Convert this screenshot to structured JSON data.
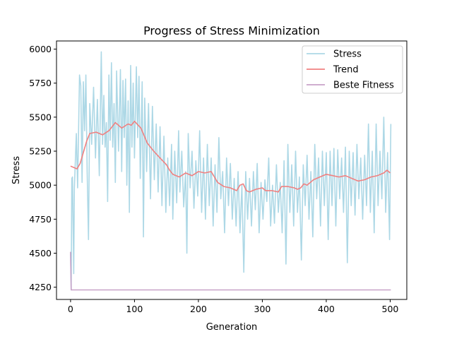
{
  "chart_data": {
    "type": "line",
    "title": "Progress of Stress Minimization",
    "xlabel": "Generation",
    "ylabel": "Stress",
    "xlim": [
      -22,
      526
    ],
    "ylim": [
      4160,
      6060
    ],
    "xticks": [
      0,
      100,
      200,
      300,
      400,
      500
    ],
    "yticks": [
      4250,
      4500,
      4750,
      5000,
      5250,
      5500,
      5750,
      6000
    ],
    "grid": false,
    "legend_position": "top-right",
    "series": [
      {
        "name": "Stress",
        "color": "#add8e6",
        "style": "noisy",
        "points": [
          [
            0,
            4510
          ],
          [
            1,
            4230
          ],
          [
            2,
            5050
          ],
          [
            3,
            5060
          ],
          [
            5,
            4350
          ],
          [
            6,
            4980
          ],
          [
            9,
            5380
          ],
          [
            11,
            4980
          ],
          [
            14,
            5810
          ],
          [
            16,
            5730
          ],
          [
            18,
            5020
          ],
          [
            20,
            5760
          ],
          [
            22,
            5400
          ],
          [
            24,
            5810
          ],
          [
            26,
            5100
          ],
          [
            28,
            4600
          ],
          [
            30,
            5600
          ],
          [
            33,
            5300
          ],
          [
            36,
            5720
          ],
          [
            39,
            5200
          ],
          [
            42,
            5630
          ],
          [
            45,
            5070
          ],
          [
            48,
            5980
          ],
          [
            50,
            5300
          ],
          [
            52,
            5660
          ],
          [
            54,
            5280
          ],
          [
            56,
            5460
          ],
          [
            58,
            4880
          ],
          [
            60,
            5810
          ],
          [
            62,
            5330
          ],
          [
            64,
            5900
          ],
          [
            66,
            5280
          ],
          [
            68,
            5600
          ],
          [
            70,
            5020
          ],
          [
            72,
            5840
          ],
          [
            75,
            5250
          ],
          [
            78,
            5850
          ],
          [
            80,
            5100
          ],
          [
            82,
            5770
          ],
          [
            84,
            5350
          ],
          [
            86,
            5780
          ],
          [
            88,
            5000
          ],
          [
            90,
            5620
          ],
          [
            92,
            4800
          ],
          [
            94,
            5880
          ],
          [
            96,
            5280
          ],
          [
            98,
            5750
          ],
          [
            100,
            5200
          ],
          [
            103,
            5870
          ],
          [
            105,
            5350
          ],
          [
            107,
            5800
          ],
          [
            109,
            5050
          ],
          [
            112,
            5760
          ],
          [
            114,
            4620
          ],
          [
            116,
            5640
          ],
          [
            119,
            5100
          ],
          [
            122,
            5600
          ],
          [
            125,
            4900
          ],
          [
            128,
            5580
          ],
          [
            131,
            5040
          ],
          [
            134,
            5450
          ],
          [
            137,
            4950
          ],
          [
            140,
            5430
          ],
          [
            143,
            4850
          ],
          [
            146,
            5360
          ],
          [
            149,
            4800
          ],
          [
            152,
            5200
          ],
          [
            155,
            4850
          ],
          [
            158,
            5300
          ],
          [
            160,
            4750
          ],
          [
            163,
            5250
          ],
          [
            166,
            4870
          ],
          [
            169,
            5400
          ],
          [
            171,
            4950
          ],
          [
            174,
            5250
          ],
          [
            177,
            4840
          ],
          [
            180,
            5100
          ],
          [
            182,
            4500
          ],
          [
            184,
            5380
          ],
          [
            187,
            4980
          ],
          [
            190,
            5250
          ],
          [
            193,
            4830
          ],
          [
            196,
            5180
          ],
          [
            199,
            4920
          ],
          [
            202,
            5400
          ],
          [
            205,
            4800
          ],
          [
            208,
            5200
          ],
          [
            211,
            4750
          ],
          [
            214,
            5300
          ],
          [
            217,
            4850
          ],
          [
            220,
            5200
          ],
          [
            223,
            4700
          ],
          [
            226,
            5150
          ],
          [
            229,
            4800
          ],
          [
            232,
            5350
          ],
          [
            235,
            4900
          ],
          [
            238,
            5100
          ],
          [
            241,
            4650
          ],
          [
            244,
            5200
          ],
          [
            247,
            4850
          ],
          [
            250,
            5160
          ],
          [
            253,
            4750
          ],
          [
            256,
            5050
          ],
          [
            259,
            4700
          ],
          [
            262,
            5100
          ],
          [
            265,
            4650
          ],
          [
            268,
            5000
          ],
          [
            271,
            4360
          ],
          [
            274,
            5100
          ],
          [
            277,
            4750
          ],
          [
            280,
            5050
          ],
          [
            283,
            4700
          ],
          [
            286,
            5100
          ],
          [
            289,
            4820
          ],
          [
            292,
            5160
          ],
          [
            295,
            4650
          ],
          [
            298,
            5020
          ],
          [
            301,
            4750
          ],
          [
            304,
            5040
          ],
          [
            307,
            4880
          ],
          [
            310,
            5200
          ],
          [
            313,
            4700
          ],
          [
            316,
            5000
          ],
          [
            319,
            4720
          ],
          [
            322,
            5150
          ],
          [
            325,
            4800
          ],
          [
            328,
            5020
          ],
          [
            331,
            4650
          ],
          [
            334,
            5180
          ],
          [
            337,
            4420
          ],
          [
            340,
            5300
          ],
          [
            343,
            4800
          ],
          [
            346,
            5150
          ],
          [
            349,
            4700
          ],
          [
            352,
            5250
          ],
          [
            355,
            4800
          ],
          [
            358,
            5060
          ],
          [
            361,
            4450
          ],
          [
            364,
            5150
          ],
          [
            367,
            4850
          ],
          [
            370,
            5220
          ],
          [
            373,
            4750
          ],
          [
            376,
            5100
          ],
          [
            379,
            4620
          ],
          [
            382,
            5300
          ],
          [
            385,
            4900
          ],
          [
            388,
            5200
          ],
          [
            391,
            4700
          ],
          [
            394,
            5250
          ],
          [
            397,
            4850
          ],
          [
            400,
            5240
          ],
          [
            403,
            4600
          ],
          [
            406,
            5250
          ],
          [
            409,
            4850
          ],
          [
            412,
            5270
          ],
          [
            415,
            4700
          ],
          [
            418,
            5260
          ],
          [
            421,
            4900
          ],
          [
            424,
            5200
          ],
          [
            427,
            4800
          ],
          [
            430,
            5280
          ],
          [
            433,
            4430
          ],
          [
            436,
            5250
          ],
          [
            439,
            4850
          ],
          [
            442,
            5240
          ],
          [
            445,
            4780
          ],
          [
            448,
            5300
          ],
          [
            451,
            4900
          ],
          [
            454,
            5200
          ],
          [
            457,
            4750
          ],
          [
            460,
            5220
          ],
          [
            463,
            4850
          ],
          [
            466,
            5450
          ],
          [
            469,
            4800
          ],
          [
            472,
            5250
          ],
          [
            475,
            4650
          ],
          [
            478,
            5450
          ],
          [
            481,
            4850
          ],
          [
            484,
            5250
          ],
          [
            487,
            4900
          ],
          [
            490,
            5500
          ],
          [
            493,
            4800
          ],
          [
            496,
            5240
          ],
          [
            499,
            4600
          ],
          [
            501,
            5450
          ]
        ]
      },
      {
        "name": "Trend",
        "color": "#f08080",
        "style": "smooth",
        "points": [
          [
            0,
            5140
          ],
          [
            10,
            5120
          ],
          [
            15,
            5160
          ],
          [
            20,
            5240
          ],
          [
            25,
            5320
          ],
          [
            30,
            5380
          ],
          [
            40,
            5390
          ],
          [
            50,
            5370
          ],
          [
            60,
            5400
          ],
          [
            70,
            5460
          ],
          [
            75,
            5440
          ],
          [
            80,
            5420
          ],
          [
            90,
            5450
          ],
          [
            95,
            5440
          ],
          [
            100,
            5470
          ],
          [
            110,
            5420
          ],
          [
            120,
            5310
          ],
          [
            130,
            5250
          ],
          [
            140,
            5200
          ],
          [
            150,
            5150
          ],
          [
            155,
            5110
          ],
          [
            160,
            5080
          ],
          [
            170,
            5060
          ],
          [
            180,
            5090
          ],
          [
            190,
            5070
          ],
          [
            200,
            5100
          ],
          [
            210,
            5090
          ],
          [
            220,
            5100
          ],
          [
            225,
            5060
          ],
          [
            230,
            5020
          ],
          [
            240,
            4990
          ],
          [
            250,
            4980
          ],
          [
            255,
            4970
          ],
          [
            260,
            4960
          ],
          [
            265,
            5000
          ],
          [
            270,
            5010
          ],
          [
            275,
            4960
          ],
          [
            280,
            4950
          ],
          [
            290,
            4970
          ],
          [
            300,
            4980
          ],
          [
            305,
            4960
          ],
          [
            315,
            4960
          ],
          [
            325,
            4950
          ],
          [
            330,
            4990
          ],
          [
            340,
            4990
          ],
          [
            350,
            4980
          ],
          [
            355,
            4970
          ],
          [
            360,
            4980
          ],
          [
            365,
            5010
          ],
          [
            370,
            5000
          ],
          [
            380,
            5040
          ],
          [
            390,
            5060
          ],
          [
            400,
            5080
          ],
          [
            410,
            5070
          ],
          [
            420,
            5060
          ],
          [
            430,
            5070
          ],
          [
            440,
            5050
          ],
          [
            450,
            5030
          ],
          [
            460,
            5040
          ],
          [
            470,
            5060
          ],
          [
            480,
            5070
          ],
          [
            490,
            5090
          ],
          [
            495,
            5110
          ],
          [
            500,
            5090
          ]
        ]
      },
      {
        "name": "Beste Fitness",
        "color": "#c8a2c8",
        "style": "flat",
        "points": [
          [
            0,
            4510
          ],
          [
            1,
            4230
          ],
          [
            501,
            4230
          ]
        ]
      }
    ]
  }
}
